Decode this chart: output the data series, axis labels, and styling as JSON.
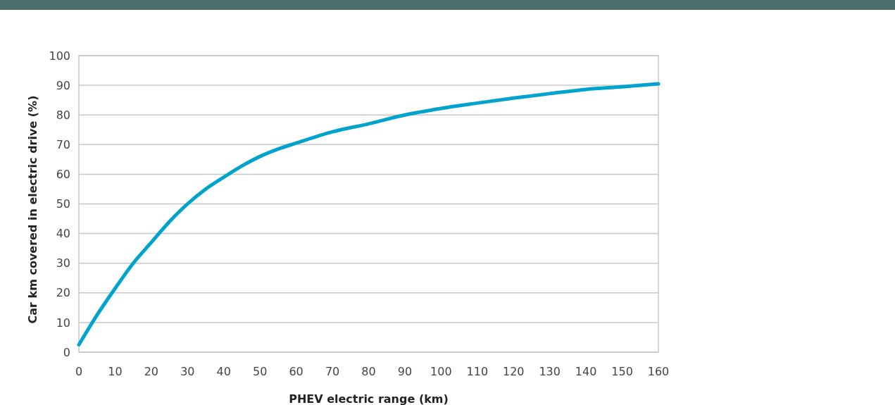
{
  "chart_data": {
    "type": "line",
    "xlabel": "PHEV electric range (km)",
    "ylabel": "Car km covered in electric drive (%)",
    "x": [
      0,
      5,
      10,
      15,
      20,
      25,
      30,
      35,
      40,
      45,
      50,
      55,
      60,
      70,
      80,
      90,
      100,
      110,
      120,
      130,
      140,
      150,
      160
    ],
    "series": [
      {
        "color": "#00a3cc",
        "values": [
          2.5,
          12.5,
          21.5,
          30,
          37,
          44,
          50,
          55,
          59,
          62.8,
          66,
          68.5,
          70.5,
          74.3,
          77,
          80,
          82.2,
          84,
          85.7,
          87.2,
          88.6,
          89.5,
          90.5
        ]
      }
    ],
    "xlim": [
      0,
      160
    ],
    "xticks": [
      0,
      10,
      20,
      30,
      40,
      50,
      60,
      70,
      80,
      90,
      100,
      110,
      120,
      130,
      140,
      150,
      160
    ],
    "ylim": [
      0,
      100
    ],
    "yticks": [
      0,
      10,
      20,
      30,
      40,
      50,
      60,
      70,
      80,
      90,
      100
    ],
    "grid": "y",
    "marker": "none",
    "line_style": "solid"
  }
}
